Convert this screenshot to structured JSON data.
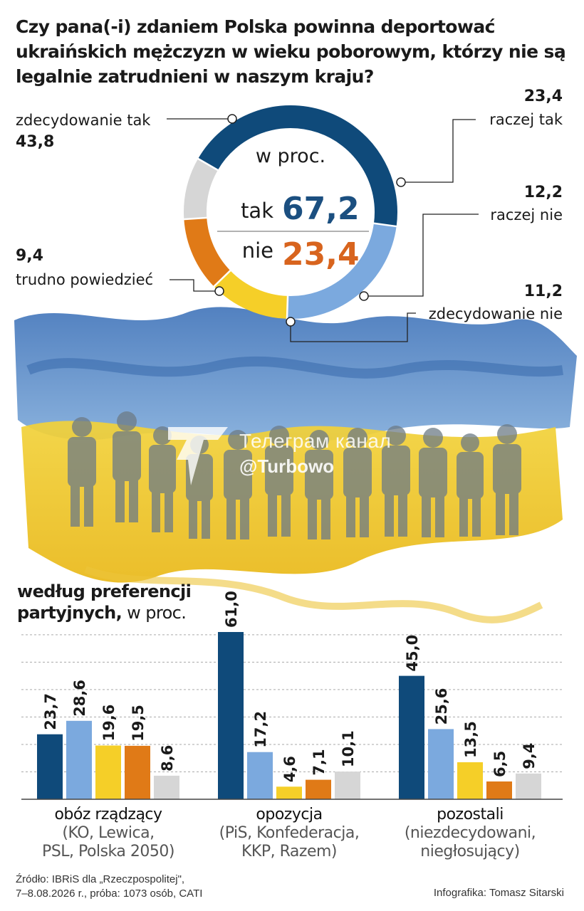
{
  "title": "Czy pana(-i) zdaniem Polska powinna deportować ukraińskich mężczyzn w wieku poborowym, którzy nie są legalnie zatrudnieni w naszym kraju?",
  "donut": {
    "center_top": "w proc.",
    "yes_label": "tak",
    "yes_value": "67,2",
    "no_label": "nie",
    "no_value": "23,4",
    "yes_color": "#1b4f80",
    "no_color": "#d8641e"
  },
  "chart_data": [
    {
      "type": "pie",
      "categories": [
        "zdecydowanie tak",
        "raczej tak",
        "raczej nie",
        "zdecydowanie nie",
        "trudno powiedzieć"
      ],
      "values": [
        43.8,
        23.4,
        12.2,
        11.2,
        9.4
      ],
      "value_labels": [
        "43,8",
        "23,4",
        "12,2",
        "11,2",
        "9,4"
      ],
      "colors": [
        "#0f4a7a",
        "#7ba9de",
        "#f5cf28",
        "#e07a17",
        "#d6d6d6"
      ]
    },
    {
      "type": "bar",
      "categories": [
        "obóz rządzący",
        "opozycja",
        "pozostali"
      ],
      "category_subtitles": [
        "(KO, Lewica, PSL, Polska 2050)",
        "(PiS, Konfederacja, KKP, Razem)",
        "(niezdecydowani, niegłosujący)"
      ],
      "series": [
        {
          "name": "zdecydowanie tak",
          "values": [
            23.7,
            61.0,
            45.0
          ],
          "labels": [
            "23,7",
            "61,0",
            "45,0"
          ]
        },
        {
          "name": "raczej tak",
          "values": [
            28.6,
            17.2,
            25.6
          ],
          "labels": [
            "28,6",
            "17,2",
            "25,6"
          ]
        },
        {
          "name": "raczej nie",
          "values": [
            19.6,
            4.6,
            13.5
          ],
          "labels": [
            "19,6",
            "4,6",
            "13,5"
          ]
        },
        {
          "name": "zdecydowanie nie",
          "values": [
            19.5,
            7.1,
            6.5
          ],
          "labels": [
            "19,5",
            "7,1",
            "6,5"
          ]
        },
        {
          "name": "trudno powiedzieć",
          "values": [
            8.6,
            10.1,
            9.4
          ],
          "labels": [
            "8,6",
            "10,1",
            "9,4"
          ]
        }
      ],
      "title": "według preferencji partyjnych",
      "unit": "w proc."
    }
  ],
  "groups": [
    {
      "name": "obóz rządzący",
      "sub1": "(KO, Lewica,",
      "sub2": "PSL, Polska 2050)"
    },
    {
      "name": "opozycja",
      "sub1": "(PiS, Konfederacja,",
      "sub2": "KKP, Razem)"
    },
    {
      "name": "pozostali",
      "sub1": "(niezdecydowani,",
      "sub2": "niegłosujący)"
    }
  ],
  "subtitle": {
    "bold": "według preferencji partyjnych,",
    "unit": "w proc."
  },
  "watermark": {
    "line1": "Телеграм канал",
    "line2": "@Turbowo"
  },
  "footer": {
    "source_line1": "Źródło: IBRiS dla „Rzeczpospolitej\",",
    "source_line2": "7–8.08.2026 r., próba: 1073 osób, CATI",
    "credit": "Infografika: Tomasz Sitarski"
  }
}
